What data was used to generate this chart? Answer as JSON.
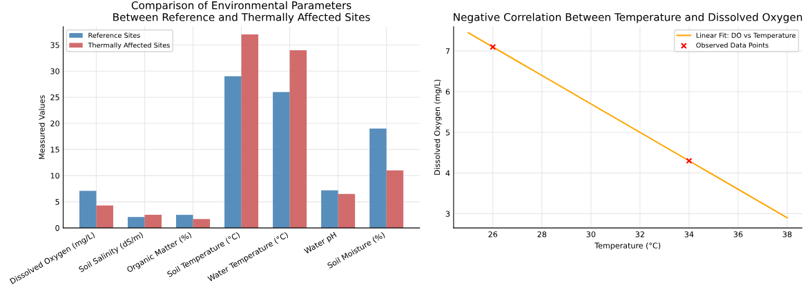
{
  "chart_data": [
    {
      "type": "bar",
      "title": "Comparison of Environmental Parameters\nBetween Reference and Thermally Affected Sites",
      "ylabel": "Measured Values",
      "categories": [
        "Dissolved Oxygen (mg/L)",
        "Soil Salinity (dS/m)",
        "Organic Matter (%)",
        "Soil Temperature (°C)",
        "Water Temperature (°C)",
        "Water pH",
        "Soil Moisture (%)"
      ],
      "series": [
        {
          "name": "Reference Sites",
          "color": "#4682b4",
          "values": [
            7.1,
            2.1,
            2.5,
            29,
            26,
            7.2,
            19
          ]
        },
        {
          "name": "Thermally Affected Sites",
          "color": "#cd5c5c",
          "values": [
            4.3,
            2.5,
            1.7,
            37,
            34,
            6.5,
            11
          ]
        }
      ],
      "ylim": [
        0,
        38.5
      ],
      "yticks": [
        0,
        5,
        10,
        15,
        20,
        25,
        30,
        35
      ],
      "grid": true,
      "legend": "top left"
    },
    {
      "type": "line",
      "title": "Negative Correlation Between Temperature and Dissolved Oxygen",
      "xlabel": "Temperature (°C)",
      "ylabel": "Dissolved Oxygen (mg/L)",
      "series": [
        {
          "name": "Linear Fit: DO vs Temperature",
          "color": "#ffa500",
          "type": "line",
          "x": [
            25,
            38
          ],
          "values": [
            7.45,
            2.9
          ]
        },
        {
          "name": "Observed Data Points",
          "color": "#ff0000",
          "type": "scatter",
          "marker": "cross",
          "x": [
            26,
            34
          ],
          "values": [
            7.1,
            4.3
          ]
        }
      ],
      "xlim": [
        24.4,
        38.6
      ],
      "xticks": [
        26,
        28,
        30,
        32,
        34,
        36,
        38
      ],
      "ylim": [
        2.65,
        7.6
      ],
      "yticks": [
        3,
        4,
        5,
        6,
        7
      ],
      "grid": true,
      "legend": "top right"
    }
  ]
}
